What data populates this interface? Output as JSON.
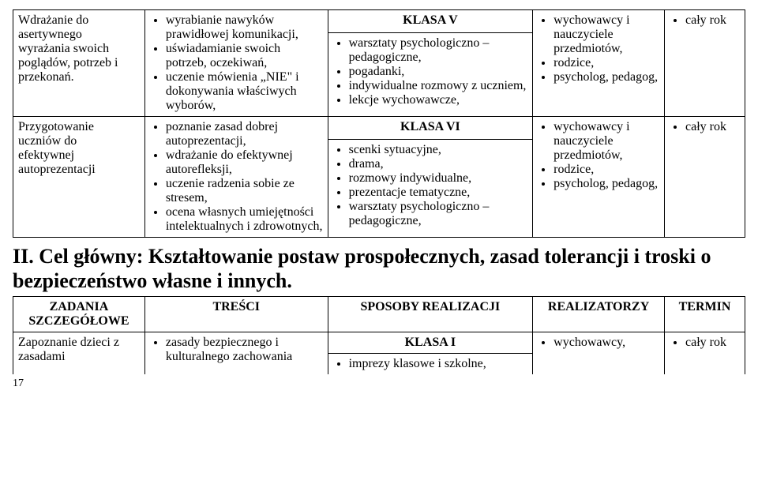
{
  "table1": {
    "klasaV": "KLASA V",
    "row1": {
      "col1_lines": [
        "Wdrażanie do",
        "asertywnego",
        "wyrażania swoich",
        "poglądów, potrzeb i",
        "przekonań."
      ],
      "col2_items": [
        "wyrabianie nawyków prawidłowej komunikacji,",
        "uświadamianie swoich potrzeb, oczekiwań,",
        "uczenie mówienia „NIE\" i dokonywania właściwych wyborów,"
      ],
      "col3_items": [
        "warsztaty psychologiczno – pedagogiczne,",
        "pogadanki,",
        "indywidualne rozmowy z uczniem,",
        "lekcje wychowawcze,"
      ],
      "col4_items": [
        "wychowawcy i nauczyciele przedmiotów,",
        "rodzice,",
        "psycholog, pedagog,"
      ],
      "col5_items": [
        "cały rok"
      ]
    },
    "klasaVI": "KLASA VI",
    "row2": {
      "col1_lines": [
        "Przygotowanie",
        "uczniów do",
        "efektywnej",
        "autoprezentacji"
      ],
      "col2_items": [
        "poznanie zasad dobrej autoprezentacji,",
        "wdrażanie do efektywnej autorefleksji,",
        "uczenie radzenia sobie ze stresem,",
        "ocena własnych umiejętności intelektualnych i zdrowotnych,"
      ],
      "col3_items": [
        "scenki sytuacyjne,",
        "drama,",
        "rozmowy indywidualne,",
        "prezentacje tematyczne,",
        "warsztaty psychologiczno – pedagogiczne,"
      ],
      "col4_items": [
        "wychowawcy i nauczyciele przedmiotów,",
        "rodzice,",
        "psycholog, pedagog,"
      ],
      "col5_items": [
        "cały rok"
      ]
    }
  },
  "heading": "II. Cel główny: Kształtowanie postaw prospołecznych, zasad tolerancji i troski o bezpieczeństwo własne i innych.",
  "table2": {
    "headers": [
      "ZADANIA SZCZEGÓŁOWE",
      "TREŚCI",
      "SPOSOBY REALIZACJI",
      "REALIZATORZY",
      "TERMIN"
    ],
    "klasaI": "KLASA I",
    "row1": {
      "col1_lines": [
        "Zapoznanie dzieci z",
        "zasadami"
      ],
      "col2_items": [
        "zasady bezpiecznego i kulturalnego zachowania"
      ],
      "col3_items": [
        "imprezy klasowe i szkolne,"
      ],
      "col4_items": [
        "wychowawcy,"
      ],
      "col5_items": [
        "cały rok"
      ]
    }
  },
  "page_number": "17"
}
